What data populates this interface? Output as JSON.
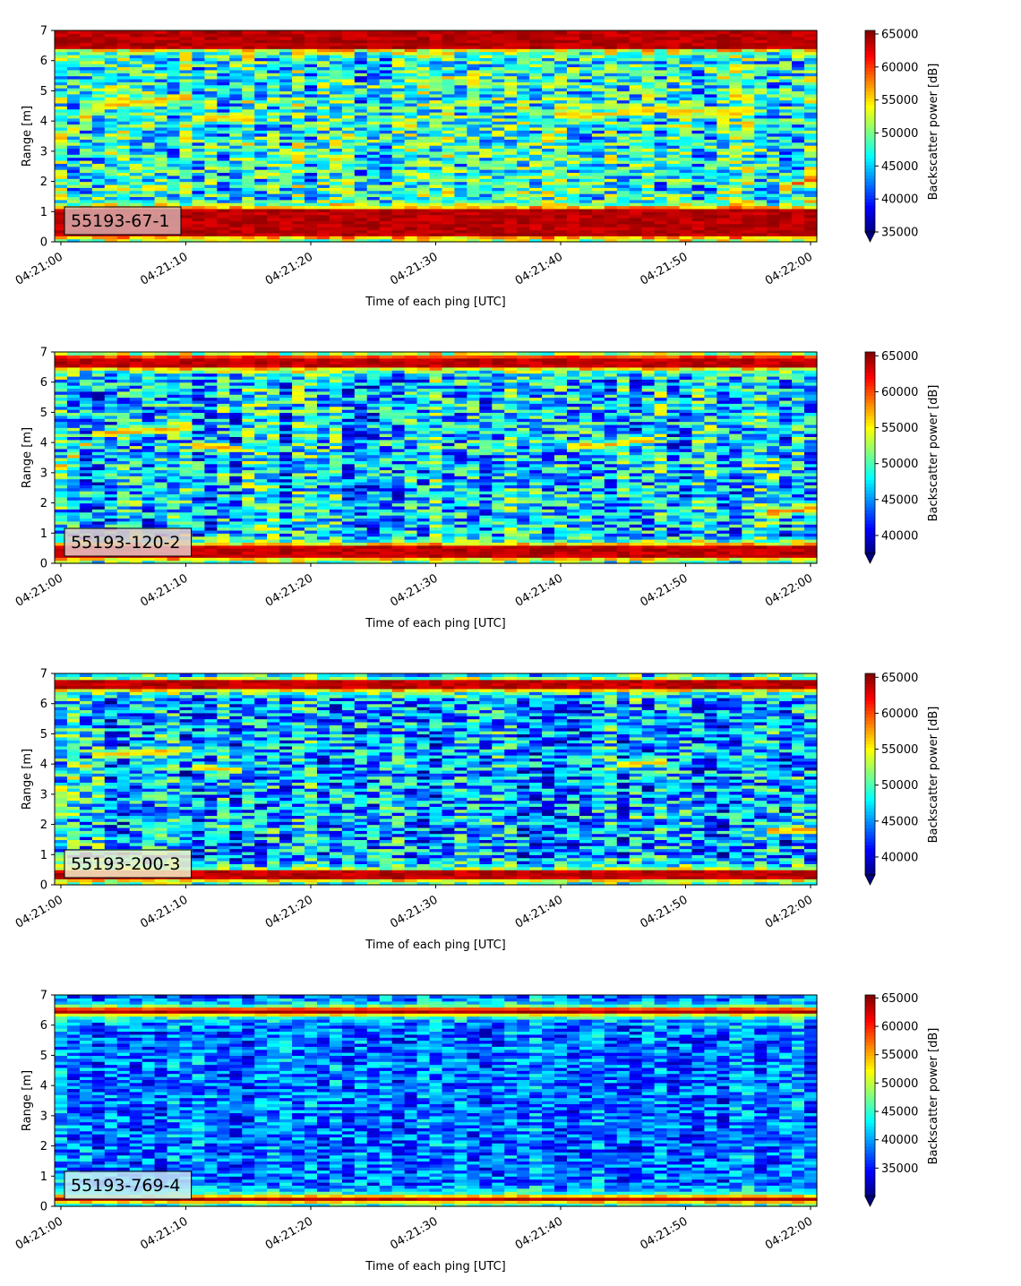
{
  "chart_data": [
    {
      "type": "heatmap",
      "panel_label": "55193-67-1",
      "xlabel": "Time of each ping [UTC]",
      "ylabel": "Range [m]",
      "xlim": [
        "04:20:59.5",
        "04:22:00.5"
      ],
      "x_tick_labels": [
        "04:21:00",
        "04:21:10",
        "04:21:20",
        "04:21:30",
        "04:21:40",
        "04:21:50",
        "04:22:00"
      ],
      "ylim": [
        0,
        7
      ],
      "y_ticks": [
        0,
        1,
        2,
        3,
        4,
        5,
        6,
        7
      ],
      "colorbar": {
        "label": "Backscatter power [dB]",
        "colormap": "jet",
        "extend": "min",
        "range": [
          35000,
          65535
        ],
        "ticks": [
          35000,
          40000,
          45000,
          50000,
          55000,
          60000,
          65000
        ]
      },
      "features": [
        {
          "type": "band",
          "range_m": [
            0.2,
            1.1
          ],
          "level": 65000
        },
        {
          "type": "band",
          "range_m": [
            6.45,
            7.0
          ],
          "level": 65000
        },
        {
          "type": "track",
          "points": [
            [
              "04:21:00",
              3.4
            ],
            [
              "04:21:03",
              4.5
            ],
            [
              "04:21:10",
              4.8
            ],
            [
              "04:21:11",
              4.1
            ],
            [
              "04:21:15",
              4.1
            ]
          ],
          "level": 57000
        },
        {
          "type": "track",
          "points": [
            [
              "04:21:40",
              4.2
            ],
            [
              "04:21:43",
              4.2
            ],
            [
              "04:21:48",
              4.4
            ],
            [
              "04:21:52",
              4.3
            ],
            [
              "04:21:55",
              4.3
            ]
          ],
          "level": 57000
        },
        {
          "type": "patch",
          "points": [
            [
              "04:21:58",
              1.8
            ],
            [
              "04:22:00",
              2.1
            ]
          ],
          "level": 62000
        }
      ]
    },
    {
      "type": "heatmap",
      "panel_label": "55193-120-2",
      "xlabel": "Time of each ping [UTC]",
      "ylabel": "Range [m]",
      "xlim": [
        "04:20:59.5",
        "04:22:00.5"
      ],
      "x_tick_labels": [
        "04:21:00",
        "04:21:10",
        "04:21:20",
        "04:21:30",
        "04:21:40",
        "04:21:50",
        "04:22:00"
      ],
      "ylim": [
        0,
        7
      ],
      "y_ticks": [
        0,
        1,
        2,
        3,
        4,
        5,
        6,
        7
      ],
      "colorbar": {
        "label": "Backscatter power [dB]",
        "colormap": "jet",
        "extend": "min",
        "range": [
          37500,
          65535
        ],
        "ticks": [
          40000,
          45000,
          50000,
          55000,
          60000,
          65000
        ]
      },
      "features": [
        {
          "type": "band",
          "range_m": [
            0.2,
            0.6
          ],
          "level": 65000
        },
        {
          "type": "band",
          "range_m": [
            6.5,
            6.85
          ],
          "level": 65000
        },
        {
          "type": "track",
          "points": [
            [
              "04:21:00",
              3.2
            ],
            [
              "04:21:03",
              4.3
            ],
            [
              "04:21:10",
              4.5
            ],
            [
              "04:21:11",
              3.9
            ],
            [
              "04:21:14",
              3.8
            ]
          ],
          "level": 59000
        },
        {
          "type": "track",
          "points": [
            [
              "04:21:41",
              3.9
            ],
            [
              "04:21:43",
              3.9
            ],
            [
              "04:21:47",
              4.1
            ]
          ],
          "level": 59000
        },
        {
          "type": "patch",
          "points": [
            [
              "04:21:57",
              1.7
            ],
            [
              "04:22:00",
              1.8
            ]
          ],
          "level": 60000
        }
      ]
    },
    {
      "type": "heatmap",
      "panel_label": "55193-200-3",
      "xlabel": "Time of each ping [UTC]",
      "ylabel": "Range [m]",
      "xlim": [
        "04:20:59.5",
        "04:22:00.5"
      ],
      "x_tick_labels": [
        "04:21:00",
        "04:21:10",
        "04:21:20",
        "04:21:30",
        "04:21:40",
        "04:21:50",
        "04:22:00"
      ],
      "ylim": [
        0,
        7
      ],
      "y_ticks": [
        0,
        1,
        2,
        3,
        4,
        5,
        6,
        7
      ],
      "colorbar": {
        "label": "Backscatter power [dB]",
        "colormap": "jet",
        "extend": "min",
        "range": [
          37500,
          65535
        ],
        "ticks": [
          40000,
          45000,
          50000,
          55000,
          60000,
          65000
        ]
      },
      "features": [
        {
          "type": "band",
          "range_m": [
            0.2,
            0.45
          ],
          "level": 65000
        },
        {
          "type": "band",
          "range_m": [
            6.5,
            6.75
          ],
          "level": 65000
        },
        {
          "type": "track",
          "points": [
            [
              "04:21:00",
              3.2
            ],
            [
              "04:21:03",
              4.3
            ],
            [
              "04:21:10",
              4.5
            ],
            [
              "04:21:11",
              3.9
            ],
            [
              "04:21:14",
              3.8
            ]
          ],
          "level": 58000
        },
        {
          "type": "track",
          "points": [
            [
              "04:21:45",
              4.0
            ],
            [
              "04:21:48",
              4.1
            ]
          ],
          "level": 58000
        },
        {
          "type": "patch",
          "points": [
            [
              "04:21:57",
              1.8
            ],
            [
              "04:22:00",
              1.8
            ]
          ],
          "level": 60000
        }
      ]
    },
    {
      "type": "heatmap",
      "panel_label": "55193-769-4",
      "xlabel": "Time of each ping [UTC]",
      "ylabel": "Range [m]",
      "xlim": [
        "04:20:59.5",
        "04:22:00.5"
      ],
      "x_tick_labels": [
        "04:21:00",
        "04:21:10",
        "04:21:20",
        "04:21:30",
        "04:21:40",
        "04:21:50",
        "04:22:00"
      ],
      "ylim": [
        0,
        7
      ],
      "y_ticks": [
        0,
        1,
        2,
        3,
        4,
        5,
        6,
        7
      ],
      "colorbar": {
        "label": "Backscatter power [dB]",
        "colormap": "jet",
        "extend": "min",
        "range": [
          30000,
          65535
        ],
        "ticks": [
          35000,
          40000,
          45000,
          50000,
          55000,
          60000,
          65000
        ]
      },
      "features": [
        {
          "type": "band",
          "range_m": [
            0.18,
            0.32
          ],
          "level": 65000
        },
        {
          "type": "band",
          "range_m": [
            6.4,
            6.55
          ],
          "level": 65000
        }
      ]
    }
  ]
}
